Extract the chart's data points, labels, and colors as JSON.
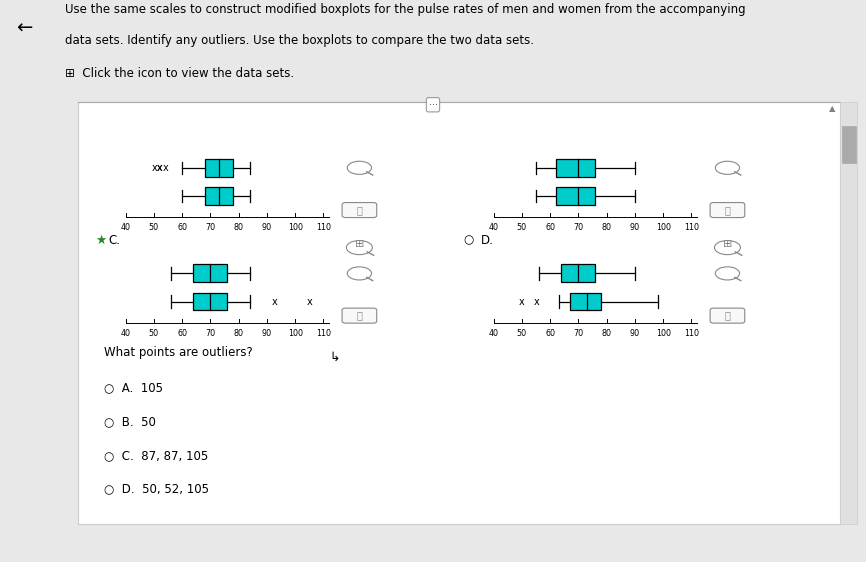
{
  "bg_header": "#e8e8e8",
  "bg_panel": "#eeeeee",
  "bg_white_panel": "#ffffff",
  "box_color": "#00cccc",
  "box_edge": "#000000",
  "xmin": 40,
  "xmax": 112,
  "xticks": [
    40,
    50,
    60,
    70,
    80,
    90,
    100,
    110
  ],
  "title_line1": "Use the same scales to construct modified boxplots for the pulse rates of men and women from the accompanying",
  "title_line2": "data sets. Identify any outliers. Use the boxplots to compare the two data sets.",
  "subtitle": "⊞  Click the icon to view the data sets.",
  "question": "What points are outliers?",
  "answers": [
    {
      "key": "A.",
      "text": "105"
    },
    {
      "key": "B.",
      "text": "50"
    },
    {
      "key": "C.",
      "text": "87, 87, 105"
    },
    {
      "key": "D.",
      "text": "50, 52, 105"
    }
  ],
  "panels": [
    {
      "name": "top_left",
      "label": "",
      "starred": false,
      "show_radio": false,
      "upper_box": {
        "Q1": 68,
        "med": 73,
        "Q3": 78,
        "wlo": 60,
        "whi": 84,
        "outliers": [
          52,
          54
        ],
        "osym": "x"
      },
      "lower_box": {
        "Q1": 68,
        "med": 73,
        "Q3": 78,
        "wlo": 60,
        "whi": 84,
        "outliers": [],
        "osym": ""
      }
    },
    {
      "name": "top_right",
      "label": "",
      "starred": false,
      "show_radio": false,
      "upper_box": {
        "Q1": 62,
        "med": 70,
        "Q3": 76,
        "wlo": 55,
        "whi": 90,
        "outliers": [],
        "osym": ""
      },
      "lower_box": {
        "Q1": 62,
        "med": 70,
        "Q3": 76,
        "wlo": 55,
        "whi": 90,
        "outliers": [],
        "osym": ""
      }
    },
    {
      "name": "bottom_left",
      "label": "C.",
      "starred": true,
      "show_radio": true,
      "upper_box": {
        "Q1": 64,
        "med": 70,
        "Q3": 76,
        "wlo": 56,
        "whi": 84,
        "outliers": [],
        "osym": ""
      },
      "lower_box": {
        "Q1": 64,
        "med": 70,
        "Q3": 76,
        "wlo": 56,
        "whi": 84,
        "outliers": [
          105
        ],
        "osym": "x"
      }
    },
    {
      "name": "bottom_right",
      "label": "D.",
      "starred": false,
      "show_radio": true,
      "upper_box": {
        "Q1": 64,
        "med": 70,
        "Q3": 76,
        "wlo": 56,
        "whi": 90,
        "outliers": [],
        "osym": ""
      },
      "lower_box": {
        "Q1": 67,
        "med": 73,
        "Q3": 78,
        "wlo": 63,
        "whi": 98,
        "outliers": [
          50
        ],
        "osym": "x"
      }
    }
  ]
}
